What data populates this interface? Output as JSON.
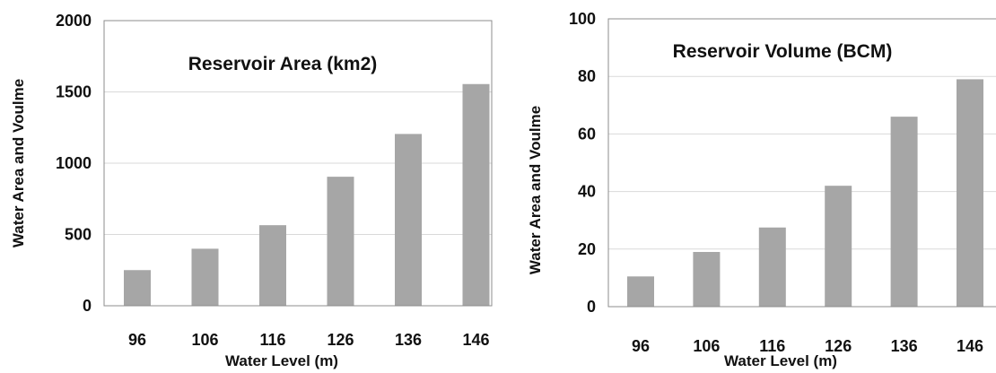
{
  "chart_data": [
    {
      "type": "bar",
      "title": "Reservoir Area (km2)",
      "xlabel": "Water Level (m)",
      "ylabel": "Water Area and Voulme",
      "categories": [
        "96",
        "106",
        "116",
        "126",
        "136",
        "146"
      ],
      "values": [
        250,
        400,
        565,
        905,
        1205,
        1555
      ],
      "ylim": [
        0,
        2000
      ],
      "yticks": [
        0,
        500,
        1000,
        1500,
        2000
      ],
      "grid": true,
      "bar_color": "#a6a6a6"
    },
    {
      "type": "bar",
      "title": "Reservoir Volume (BCM)",
      "xlabel": "Water Level (m)",
      "ylabel": "Water Area and Voulme",
      "categories": [
        "96",
        "106",
        "116",
        "126",
        "136",
        "146"
      ],
      "values": [
        10.5,
        19,
        27.5,
        42,
        66,
        79
      ],
      "ylim": [
        0,
        100
      ],
      "yticks": [
        0,
        20,
        40,
        60,
        80,
        100
      ],
      "grid": true,
      "bar_color": "#a6a6a6"
    }
  ]
}
